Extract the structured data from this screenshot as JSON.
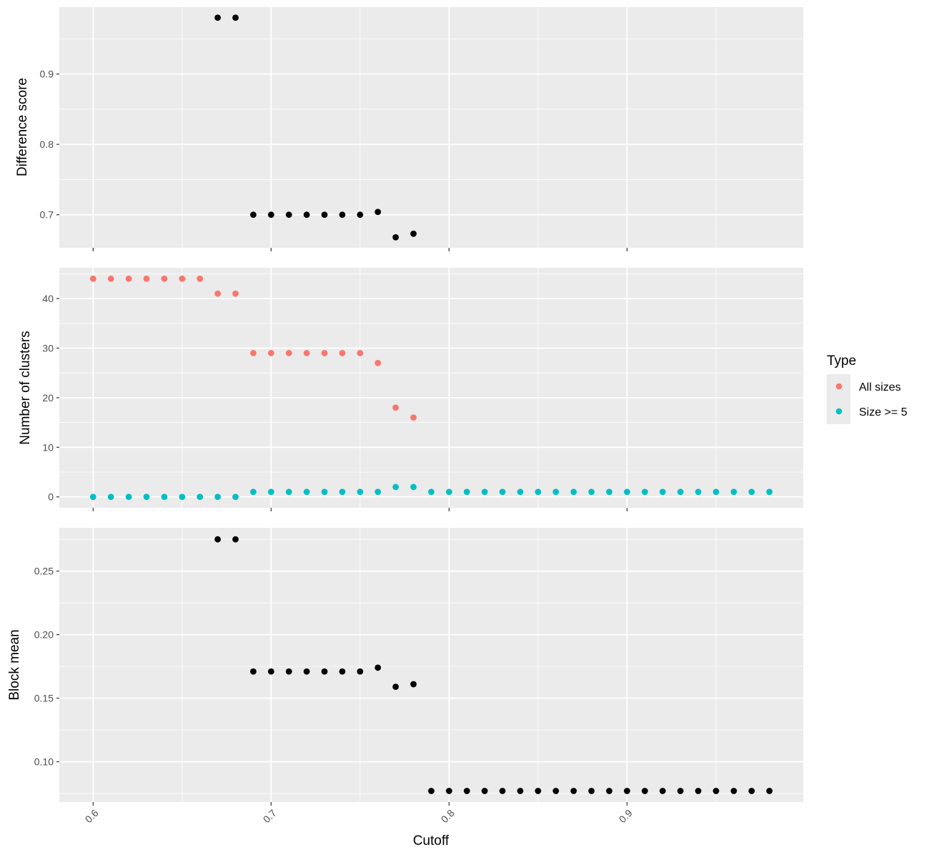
{
  "chart_data": [
    {
      "type": "scatter",
      "ylabel": "Difference score",
      "xlim": [
        0.581,
        0.999
      ],
      "ylim": [
        0.653,
        0.995
      ],
      "y_ticks": [
        0.7,
        0.8,
        0.9
      ],
      "y_tick_labels": [
        "0.7",
        "0.8",
        "0.9"
      ],
      "grid": true,
      "series": [
        {
          "color": "#000000",
          "x": [
            0.67,
            0.68,
            0.69,
            0.7,
            0.71,
            0.72,
            0.73,
            0.74,
            0.75,
            0.76,
            0.77,
            0.78
          ],
          "y": [
            0.98,
            0.98,
            0.7,
            0.7,
            0.7,
            0.7,
            0.7,
            0.7,
            0.7,
            0.704,
            0.668,
            0.673
          ]
        }
      ]
    },
    {
      "type": "scatter",
      "ylabel": "Number of clusters",
      "xlim": [
        0.581,
        0.999
      ],
      "ylim": [
        -2.2,
        46.2
      ],
      "y_ticks": [
        0,
        10,
        20,
        30,
        40
      ],
      "y_tick_labels": [
        "0",
        "10",
        "20",
        "30",
        "40"
      ],
      "grid": true,
      "legend": {
        "title": "Type",
        "placement": "right",
        "entries": [
          {
            "label": "All sizes",
            "color": "#F8766D"
          },
          {
            "label": "Size >= 5",
            "color": "#00BFC4"
          }
        ]
      },
      "series": [
        {
          "name": "All sizes",
          "color": "#F8766D",
          "x": [
            0.6,
            0.61,
            0.62,
            0.63,
            0.64,
            0.65,
            0.66,
            0.67,
            0.68,
            0.69,
            0.7,
            0.71,
            0.72,
            0.73,
            0.74,
            0.75,
            0.76,
            0.77,
            0.78
          ],
          "y": [
            44,
            44,
            44,
            44,
            44,
            44,
            44,
            41,
            41,
            29,
            29,
            29,
            29,
            29,
            29,
            29,
            27,
            18,
            16
          ]
        },
        {
          "name": "Size >= 5",
          "color": "#00BFC4",
          "x": [
            0.6,
            0.61,
            0.62,
            0.63,
            0.64,
            0.65,
            0.66,
            0.67,
            0.68,
            0.69,
            0.7,
            0.71,
            0.72,
            0.73,
            0.74,
            0.75,
            0.76,
            0.77,
            0.78,
            0.79,
            0.8,
            0.81,
            0.82,
            0.83,
            0.84,
            0.85,
            0.86,
            0.87,
            0.88,
            0.89,
            0.9,
            0.91,
            0.92,
            0.93,
            0.94,
            0.95,
            0.96,
            0.97,
            0.98
          ],
          "y": [
            0,
            0,
            0,
            0,
            0,
            0,
            0,
            0,
            0,
            1,
            1,
            1,
            1,
            1,
            1,
            1,
            1,
            2,
            2,
            1,
            1,
            1,
            1,
            1,
            1,
            1,
            1,
            1,
            1,
            1,
            1,
            1,
            1,
            1,
            1,
            1,
            1,
            1,
            1
          ]
        }
      ]
    },
    {
      "type": "scatter",
      "ylabel": "Block mean",
      "xlabel": "Cutoff",
      "xlim": [
        0.581,
        0.999
      ],
      "ylim": [
        0.0683,
        0.2841
      ],
      "x_ticks": [
        0.6,
        0.7,
        0.8,
        0.9
      ],
      "x_tick_labels": [
        "0.6",
        "0.7",
        "0.8",
        "0.9"
      ],
      "y_ticks": [
        0.1,
        0.15,
        0.2,
        0.25
      ],
      "y_tick_labels": [
        "0.10",
        "0.15",
        "0.20",
        "0.25"
      ],
      "grid": true,
      "series": [
        {
          "color": "#000000",
          "x": [
            0.67,
            0.68,
            0.69,
            0.7,
            0.71,
            0.72,
            0.73,
            0.74,
            0.75,
            0.76,
            0.77,
            0.78,
            0.79,
            0.8,
            0.81,
            0.82,
            0.83,
            0.84,
            0.85,
            0.86,
            0.87,
            0.88,
            0.89,
            0.9,
            0.91,
            0.92,
            0.93,
            0.94,
            0.95,
            0.96,
            0.97,
            0.98
          ],
          "y": [
            0.275,
            0.275,
            0.171,
            0.171,
            0.171,
            0.171,
            0.171,
            0.171,
            0.171,
            0.174,
            0.159,
            0.161,
            0.077,
            0.077,
            0.077,
            0.077,
            0.077,
            0.077,
            0.077,
            0.077,
            0.077,
            0.077,
            0.077,
            0.077,
            0.077,
            0.077,
            0.077,
            0.077,
            0.077,
            0.077,
            0.077,
            0.077
          ]
        }
      ]
    }
  ]
}
